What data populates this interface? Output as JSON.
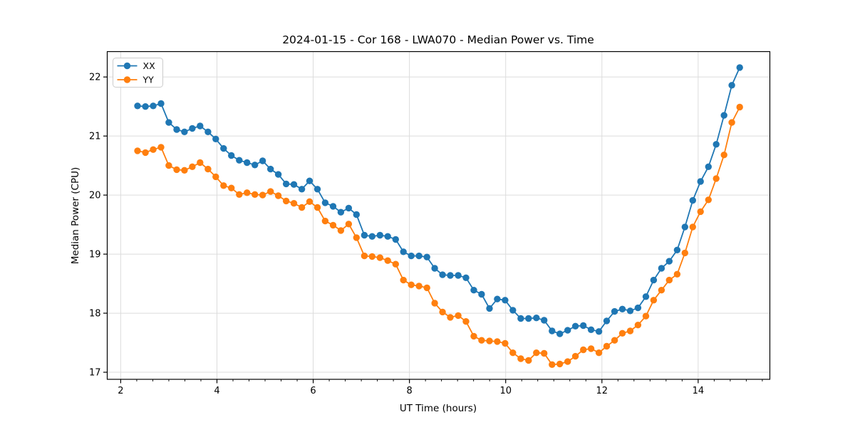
{
  "figure": {
    "title": "2024-01-15 - Cor 168 - LWA070 - Median Power vs. Time"
  },
  "chart_data": {
    "type": "line",
    "title": "2024-01-15 - Cor 168 - LWA070 - Median Power vs. Time",
    "xlabel": "UT Time (hours)",
    "ylabel": "Median Power (CPU)",
    "xlim": [
      1.72,
      15.49
    ],
    "ylim": [
      16.88,
      22.43
    ],
    "xticks": [
      2,
      4,
      6,
      8,
      10,
      12,
      14
    ],
    "yticks": [
      17,
      18,
      19,
      20,
      21,
      22
    ],
    "x_minor_step": 0.33333,
    "grid": true,
    "grid_color": "#dcdcdc",
    "legend_position": "upper left",
    "marker": "circle",
    "x": [
      2.35,
      2.513,
      2.675,
      2.838,
      3.0,
      3.163,
      3.325,
      3.488,
      3.65,
      3.813,
      3.975,
      4.138,
      4.3,
      4.463,
      4.625,
      4.788,
      4.95,
      5.113,
      5.275,
      5.438,
      5.6,
      5.763,
      5.925,
      6.088,
      6.25,
      6.413,
      6.575,
      6.738,
      6.9,
      7.063,
      7.225,
      7.388,
      7.55,
      7.713,
      7.875,
      8.038,
      8.2,
      8.363,
      8.525,
      8.688,
      8.85,
      9.013,
      9.175,
      9.338,
      9.5,
      9.663,
      9.825,
      9.988,
      10.15,
      10.313,
      10.475,
      10.638,
      10.8,
      10.963,
      11.125,
      11.288,
      11.45,
      11.613,
      11.775,
      11.938,
      12.1,
      12.263,
      12.425,
      12.588,
      12.75,
      12.913,
      13.075,
      13.238,
      13.4,
      13.563,
      13.725,
      13.888,
      14.05,
      14.213,
      14.375,
      14.538,
      14.7,
      14.863
    ],
    "series": [
      {
        "name": "XX",
        "color": "#1f77b4",
        "values": [
          21.51,
          21.5,
          21.51,
          21.55,
          21.23,
          21.11,
          21.07,
          21.13,
          21.17,
          21.07,
          20.95,
          20.79,
          20.67,
          20.59,
          20.55,
          20.51,
          20.58,
          20.44,
          20.35,
          20.19,
          20.18,
          20.1,
          20.24,
          20.1,
          19.87,
          19.81,
          19.71,
          19.78,
          19.67,
          19.32,
          19.3,
          19.32,
          19.3,
          19.25,
          19.04,
          18.97,
          18.97,
          18.95,
          18.76,
          18.65,
          18.64,
          18.64,
          18.6,
          18.39,
          18.32,
          18.08,
          18.24,
          18.22,
          18.05,
          17.91,
          17.91,
          17.92,
          17.88,
          17.7,
          17.65,
          17.71,
          17.78,
          17.79,
          17.72,
          17.69,
          17.87,
          18.03,
          18.07,
          18.04,
          18.09,
          18.28,
          18.56,
          18.76,
          18.88,
          19.07,
          19.46,
          19.91,
          20.23,
          20.48,
          20.86,
          21.35,
          21.86,
          22.16
        ]
      },
      {
        "name": "YY",
        "color": "#ff7f0e",
        "values": [
          20.75,
          20.72,
          20.77,
          20.81,
          20.5,
          20.43,
          20.42,
          20.48,
          20.55,
          20.44,
          20.31,
          20.16,
          20.12,
          20.01,
          20.04,
          20.01,
          20.0,
          20.06,
          19.99,
          19.9,
          19.86,
          19.79,
          19.89,
          19.79,
          19.56,
          19.49,
          19.4,
          19.51,
          19.28,
          18.97,
          18.96,
          18.94,
          18.89,
          18.83,
          18.56,
          18.48,
          18.46,
          18.43,
          18.17,
          18.02,
          17.93,
          17.96,
          17.86,
          17.61,
          17.54,
          17.53,
          17.52,
          17.49,
          17.33,
          17.23,
          17.2,
          17.33,
          17.32,
          17.13,
          17.14,
          17.18,
          17.27,
          17.38,
          17.4,
          17.33,
          17.44,
          17.54,
          17.66,
          17.7,
          17.8,
          17.95,
          18.22,
          18.39,
          18.56,
          18.66,
          19.02,
          19.46,
          19.72,
          19.92,
          20.28,
          20.68,
          21.23,
          21.49
        ]
      }
    ]
  }
}
